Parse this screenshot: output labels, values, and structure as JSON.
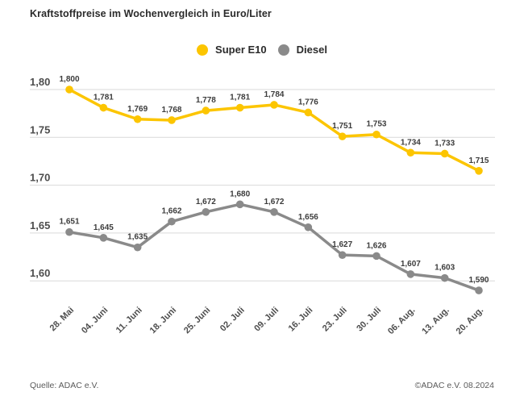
{
  "title": "Kraftstoffpreise im Wochenvergleich in Euro/Liter",
  "legend": [
    {
      "label": "Super E10",
      "color": "#fcc500"
    },
    {
      "label": "Diesel",
      "color": "#8a8a8a"
    }
  ],
  "footer": {
    "left": "Quelle: ADAC e.V.",
    "right": "©ADAC e.V. 08.2024"
  },
  "colors": {
    "gridline": "#d9d9d9",
    "tick_text": "#4d4d4d",
    "point_label_text": "#3c3c3c"
  },
  "chart_data": {
    "type": "line",
    "title": "Kraftstoffpreise im Wochenvergleich in Euro/Liter",
    "xlabel": "",
    "ylabel": "Euro/Liter",
    "ylim": [
      1.575,
      1.82
    ],
    "grid": true,
    "legend_position": "top-center",
    "categories": [
      "28. Mai",
      "04. Juni",
      "11. Juni",
      "18. Juni",
      "25. Juni",
      "02. Juli",
      "09. Juli",
      "16. Juli",
      "23. Juli",
      "30. Juli",
      "06. Aug.",
      "13. Aug.",
      "20. Aug."
    ],
    "y_ticks": [
      {
        "value": 1.8,
        "label": "1,80"
      },
      {
        "value": 1.75,
        "label": "1,75"
      },
      {
        "value": 1.7,
        "label": "1,70"
      },
      {
        "value": 1.65,
        "label": "1,65"
      },
      {
        "value": 1.6,
        "label": "1,60"
      }
    ],
    "series": [
      {
        "name": "Super E10",
        "color": "#fcc500",
        "values": [
          1.8,
          1.781,
          1.769,
          1.768,
          1.778,
          1.781,
          1.784,
          1.776,
          1.751,
          1.753,
          1.734,
          1.733,
          1.715
        ],
        "labels": [
          "1,800",
          "1,781",
          "1,769",
          "1,768",
          "1,778",
          "1,781",
          "1,784",
          "1,776",
          "1,751",
          "1,753",
          "1,734",
          "1,733",
          "1,715"
        ]
      },
      {
        "name": "Diesel",
        "color": "#8a8a8a",
        "values": [
          1.651,
          1.645,
          1.635,
          1.662,
          1.672,
          1.68,
          1.672,
          1.656,
          1.627,
          1.626,
          1.607,
          1.603,
          1.59
        ],
        "labels": [
          "1,651",
          "1,645",
          "1,635",
          "1,662",
          "1,672",
          "1,680",
          "1,672",
          "1,656",
          "1,627",
          "1,626",
          "1,607",
          "1,603",
          "1,590"
        ]
      }
    ]
  }
}
